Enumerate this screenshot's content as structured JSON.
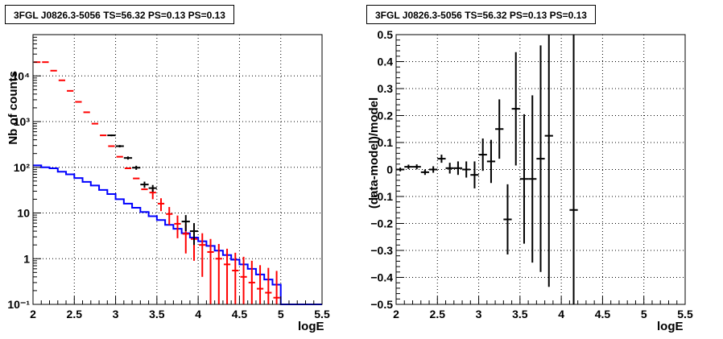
{
  "chart_data": [
    {
      "type": "histogram",
      "title": "3FGL J0826.3-5056 TS=56.32 PS=0.13 PS=0.13",
      "xlabel": "logE",
      "ylabel": "Nb of counts",
      "xlim": [
        2,
        5.5
      ],
      "ylim": [
        0.1,
        80000
      ],
      "yscale": "log",
      "grid": true,
      "x_ticks": [
        "2",
        "2.5",
        "3",
        "3.5",
        "4",
        "4.5",
        "5",
        "5.5"
      ],
      "y_ticks": [
        {
          "value": 0.1,
          "label": "10⁻¹"
        },
        {
          "value": 1,
          "label": "1"
        },
        {
          "value": 10,
          "label": "10"
        },
        {
          "value": 100,
          "label": "10²"
        },
        {
          "value": 1000,
          "label": "10³"
        },
        {
          "value": 10000,
          "label": "10⁴"
        }
      ],
      "bin_edges": [
        2.0,
        2.1,
        2.2,
        2.3,
        2.4,
        2.5,
        2.6,
        2.7,
        2.8,
        2.9,
        3.0,
        3.1,
        3.2,
        3.3,
        3.4,
        3.5,
        3.6,
        3.7,
        3.8,
        3.9,
        4.0,
        4.1,
        4.2,
        4.3,
        4.4,
        4.5,
        4.6,
        4.7,
        4.8,
        4.9,
        5.0,
        5.1,
        5.2,
        5.3,
        5.4,
        5.5
      ],
      "series": [
        {
          "color": "#0000ff",
          "style": "step",
          "values": [
            110,
            100,
            95,
            80,
            70,
            58,
            48,
            40,
            32,
            26,
            20,
            16,
            13,
            10.5,
            8.5,
            7,
            5.5,
            4.5,
            3.6,
            2.9,
            2.4,
            1.9,
            1.5,
            1.2,
            0.95,
            0.75,
            0.6,
            0.45,
            0.35,
            0.27,
            0.1,
            0.1,
            0.1,
            0.1,
            0.1
          ]
        },
        {
          "color": "#ff0000",
          "style": "model-markers",
          "x": [
            2.05,
            2.15,
            2.25,
            2.35,
            2.45,
            2.55,
            2.65,
            2.75,
            2.85,
            2.95,
            3.05,
            3.15,
            3.25,
            3.35,
            3.45,
            3.55,
            3.65,
            3.75,
            3.85,
            3.95,
            4.05,
            4.15,
            4.25,
            4.35,
            4.45,
            4.55,
            4.65,
            4.75,
            4.85,
            4.95
          ],
          "y": [
            20000,
            20000,
            13000,
            8000,
            4700,
            2700,
            1600,
            900,
            500,
            290,
            170,
            95,
            57,
            33,
            28,
            16,
            9.5,
            5.8,
            3.5,
            2.7,
            2.0,
            1.4,
            1.0,
            0.75,
            0.55,
            0.4,
            0.3,
            0.22,
            0.18,
            0.14
          ],
          "err": [
            0,
            0,
            0,
            0,
            0,
            0,
            0,
            0,
            0,
            0,
            0,
            0,
            0,
            0,
            8,
            5,
            4,
            3,
            2.2,
            1.8,
            1.6,
            1.3,
            1.1,
            0.9,
            0.8,
            0.7,
            0.6,
            0.5,
            0.45,
            0.4
          ]
        },
        {
          "color": "#000000",
          "style": "data-points",
          "x": [
            2.95,
            3.05,
            3.15,
            3.25,
            3.35,
            3.45,
            3.85,
            3.95
          ],
          "y": [
            500,
            290,
            160,
            98,
            42,
            35,
            6.5,
            4.0
          ],
          "err": [
            22,
            17,
            12.5,
            10,
            6.5,
            6,
            2.5,
            2.0
          ]
        }
      ]
    },
    {
      "type": "scatter",
      "title": "3FGL J0826.3-5056 TS=56.32 PS=0.13 PS=0.13",
      "xlabel": "logE",
      "ylabel": "(data-model)/model",
      "xlim": [
        2,
        5.5
      ],
      "ylim": [
        -0.5,
        0.5
      ],
      "grid": true,
      "x_ticks": [
        "2",
        "2.5",
        "3",
        "3.5",
        "4",
        "4.5",
        "5",
        "5.5"
      ],
      "y_ticks": [
        "−0.5",
        "−0.4",
        "−0.3",
        "−0.2",
        "−0.1",
        "0",
        "0.1",
        "0.2",
        "0.3",
        "0.4",
        "0.5"
      ],
      "series": [
        {
          "color": "#000000",
          "x": [
            2.05,
            2.15,
            2.25,
            2.35,
            2.45,
            2.55,
            2.65,
            2.75,
            2.85,
            2.95,
            3.05,
            3.15,
            3.25,
            3.35,
            3.45,
            3.55,
            3.65,
            3.75,
            3.85,
            4.15
          ],
          "y": [
            0.0,
            0.01,
            0.01,
            -0.01,
            0.0,
            0.04,
            0.005,
            0.005,
            0.0,
            -0.02,
            0.055,
            0.03,
            0.15,
            -0.185,
            0.225,
            -0.035,
            -0.035,
            0.04,
            0.125,
            -0.15
          ],
          "err": [
            0.007,
            0.008,
            0.009,
            0.01,
            0.012,
            0.015,
            0.02,
            0.025,
            0.03,
            0.05,
            0.06,
            0.08,
            0.11,
            0.13,
            0.21,
            0.24,
            0.31,
            0.42,
            0.56,
            0.9
          ]
        }
      ]
    }
  ]
}
